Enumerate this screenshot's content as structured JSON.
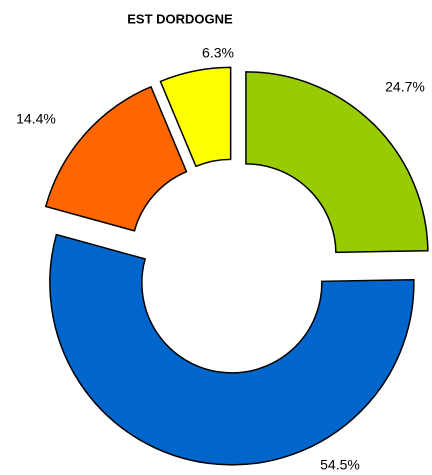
{
  "chart_data": {
    "type": "donut",
    "title": "EST DORDOGNE",
    "values": [
      24.7,
      54.5,
      14.4,
      6.3
    ],
    "value_labels": [
      "24.7%",
      "54.5%",
      "14.4%",
      "6.3%"
    ],
    "colors": [
      "#99cc00",
      "#0066cc",
      "#ff6600",
      "#ffff00"
    ]
  }
}
